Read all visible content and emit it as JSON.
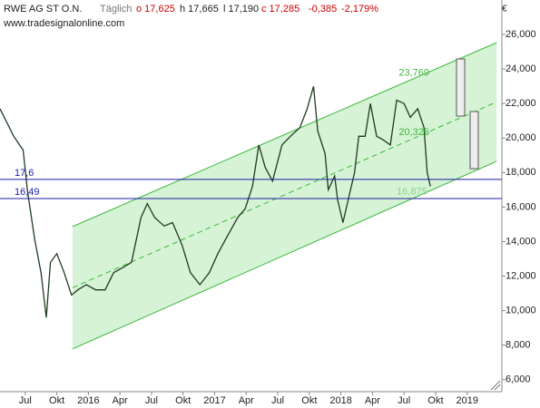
{
  "header": {
    "symbol": "RWE AG ST O.N.",
    "period": "Täglich",
    "open": "o 17,625",
    "high": "h 17,665",
    "low": "l 17,190",
    "close": "c 17,285",
    "change": "-0,385",
    "change_pct": "-2,179%",
    "source": "www.tradesignalonline.com"
  },
  "chart_data": {
    "type": "line",
    "currency": "€",
    "color": "#1f3b1f",
    "x": [
      3.6,
      4.9,
      5.8,
      6.2,
      6.9,
      7.5,
      8.0,
      8.4,
      9.0,
      9.7,
      10.4,
      11.0,
      11.8,
      12.7,
      13.6,
      14.4,
      15.3,
      16.1,
      17.0,
      17.6,
      18.3,
      19.2,
      20.0,
      20.9,
      21.7,
      22.6,
      23.5,
      24.3,
      25.2,
      26.2,
      26.9,
      27.6,
      28.2,
      28.8,
      29.5,
      30.4,
      31.2,
      32.1,
      32.8,
      33.4,
      33.8,
      34.5,
      34.8,
      35.4,
      35.7,
      36.2,
      36.8,
      37.3,
      37.7,
      38.3,
      38.8,
      39.4,
      40.0,
      40.7,
      41.3,
      42.0,
      42.6,
      43.3,
      43.9,
      44.2,
      44.5
    ],
    "values": [
      21700,
      20100,
      19300,
      17000,
      14100,
      12200,
      9600,
      12800,
      13300,
      12200,
      10900,
      11200,
      11500,
      11200,
      11200,
      12200,
      12500,
      12800,
      15400,
      16200,
      15400,
      14900,
      15100,
      13800,
      12200,
      11500,
      12200,
      13300,
      14300,
      15400,
      15900,
      17200,
      19600,
      18300,
      17500,
      19600,
      20100,
      20600,
      21700,
      23000,
      20400,
      19100,
      17000,
      17800,
      16400,
      15100,
      16700,
      18000,
      20100,
      20100,
      22000,
      20100,
      19900,
      19600,
      22200,
      22000,
      21200,
      21700,
      20600,
      18000,
      17200
    ],
    "xlim": [
      3.6,
      51.3
    ],
    "ylim": [
      5300,
      28000
    ],
    "xticks": [
      {
        "value": 6,
        "label": "Jul"
      },
      {
        "value": 9,
        "label": "Okt"
      },
      {
        "value": 12,
        "label": "2016"
      },
      {
        "value": 15,
        "label": "Apr"
      },
      {
        "value": 18,
        "label": "Jul"
      },
      {
        "value": 21,
        "label": "Okt"
      },
      {
        "value": 24,
        "label": "2017"
      },
      {
        "value": 27,
        "label": "Apr"
      },
      {
        "value": 30,
        "label": "Jul"
      },
      {
        "value": 33,
        "label": "Okt"
      },
      {
        "value": 36,
        "label": "2018"
      },
      {
        "value": 39,
        "label": "Apr"
      },
      {
        "value": 42,
        "label": "Jul"
      },
      {
        "value": 45,
        "label": "Okt"
      },
      {
        "value": 48,
        "label": "2019"
      }
    ],
    "yticks": [
      {
        "value": 6000,
        "label": "6,000"
      },
      {
        "value": 8000,
        "label": "8,000"
      },
      {
        "value": 10000,
        "label": "10,000"
      },
      {
        "value": 12000,
        "label": "12,000"
      },
      {
        "value": 14000,
        "label": "14,000"
      },
      {
        "value": 16000,
        "label": "16,000"
      },
      {
        "value": 18000,
        "label": "18,000"
      },
      {
        "value": 20000,
        "label": "20,000"
      },
      {
        "value": 22000,
        "label": "22,000"
      },
      {
        "value": 24000,
        "label": "24,000"
      },
      {
        "value": 26000,
        "label": "26,000"
      }
    ],
    "channel": {
      "x": [
        10.5,
        50.8
      ],
      "upper": [
        14870,
        25530
      ],
      "lower": [
        7780,
        18650
      ],
      "color": "#3cb83c",
      "fill": "#d6f3d6"
    },
    "levels": {
      "values": [
        17600,
        16490
      ],
      "value_labels": [
        "17,6",
        "16,49"
      ],
      "color": "#1c1ca6"
    },
    "annotations": [
      {
        "text": "23,769",
        "x": 41.5,
        "y": 23769,
        "color": "#3cb83c"
      },
      {
        "text": "20,325",
        "x": 41.5,
        "y": 20325,
        "color": "#3cb83c"
      },
      {
        "text": "16,875",
        "x": 41.3,
        "y": 16875,
        "color": "#8fd18f"
      }
    ]
  }
}
